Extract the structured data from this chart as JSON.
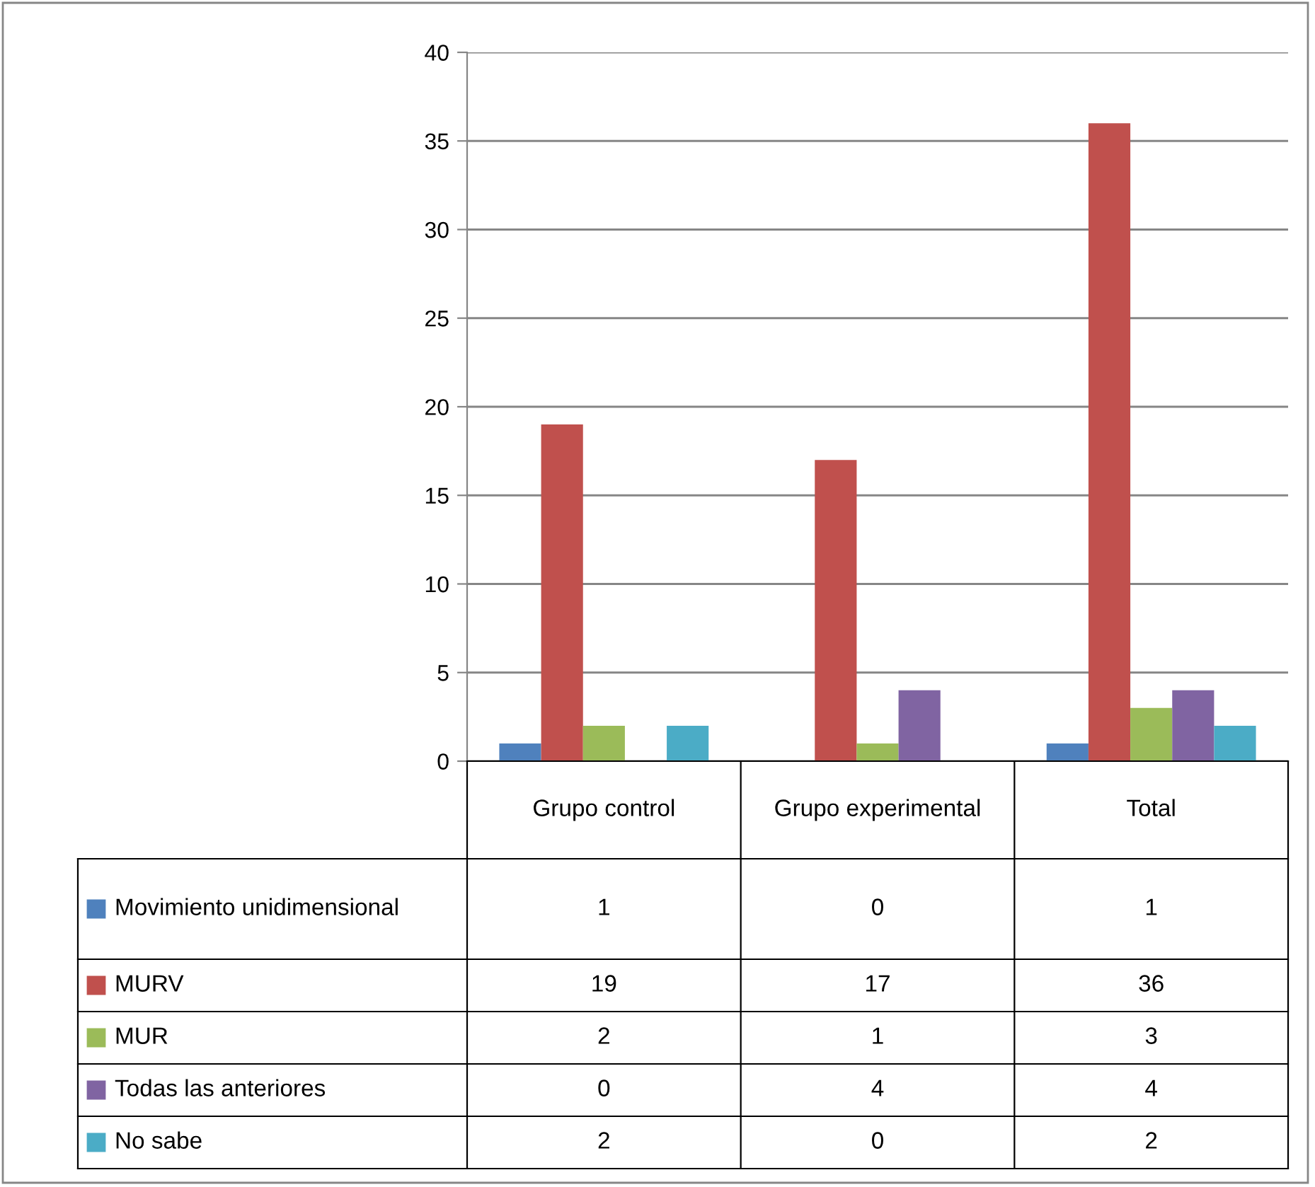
{
  "chart_data": {
    "type": "bar",
    "categories": [
      "Grupo control",
      "Grupo experimental",
      "Total"
    ],
    "series": [
      {
        "name": "Movimiento unidimensional",
        "color": "#4f81bd",
        "values": [
          1,
          0,
          1
        ]
      },
      {
        "name": "MURV",
        "color": "#c0504d",
        "values": [
          19,
          17,
          36
        ]
      },
      {
        "name": "MUR",
        "color": "#9bbb59",
        "values": [
          2,
          1,
          3
        ]
      },
      {
        "name": "Todas las anteriores",
        "color": "#8064a2",
        "values": [
          0,
          4,
          4
        ]
      },
      {
        "name": "No sabe",
        "color": "#4bacc6",
        "values": [
          2,
          0,
          2
        ]
      }
    ],
    "ylim": [
      0,
      40
    ],
    "yticks": [
      0,
      5,
      10,
      15,
      20,
      25,
      30,
      35,
      40
    ],
    "grid": "y",
    "legend": "bottom",
    "data_labels": true
  }
}
